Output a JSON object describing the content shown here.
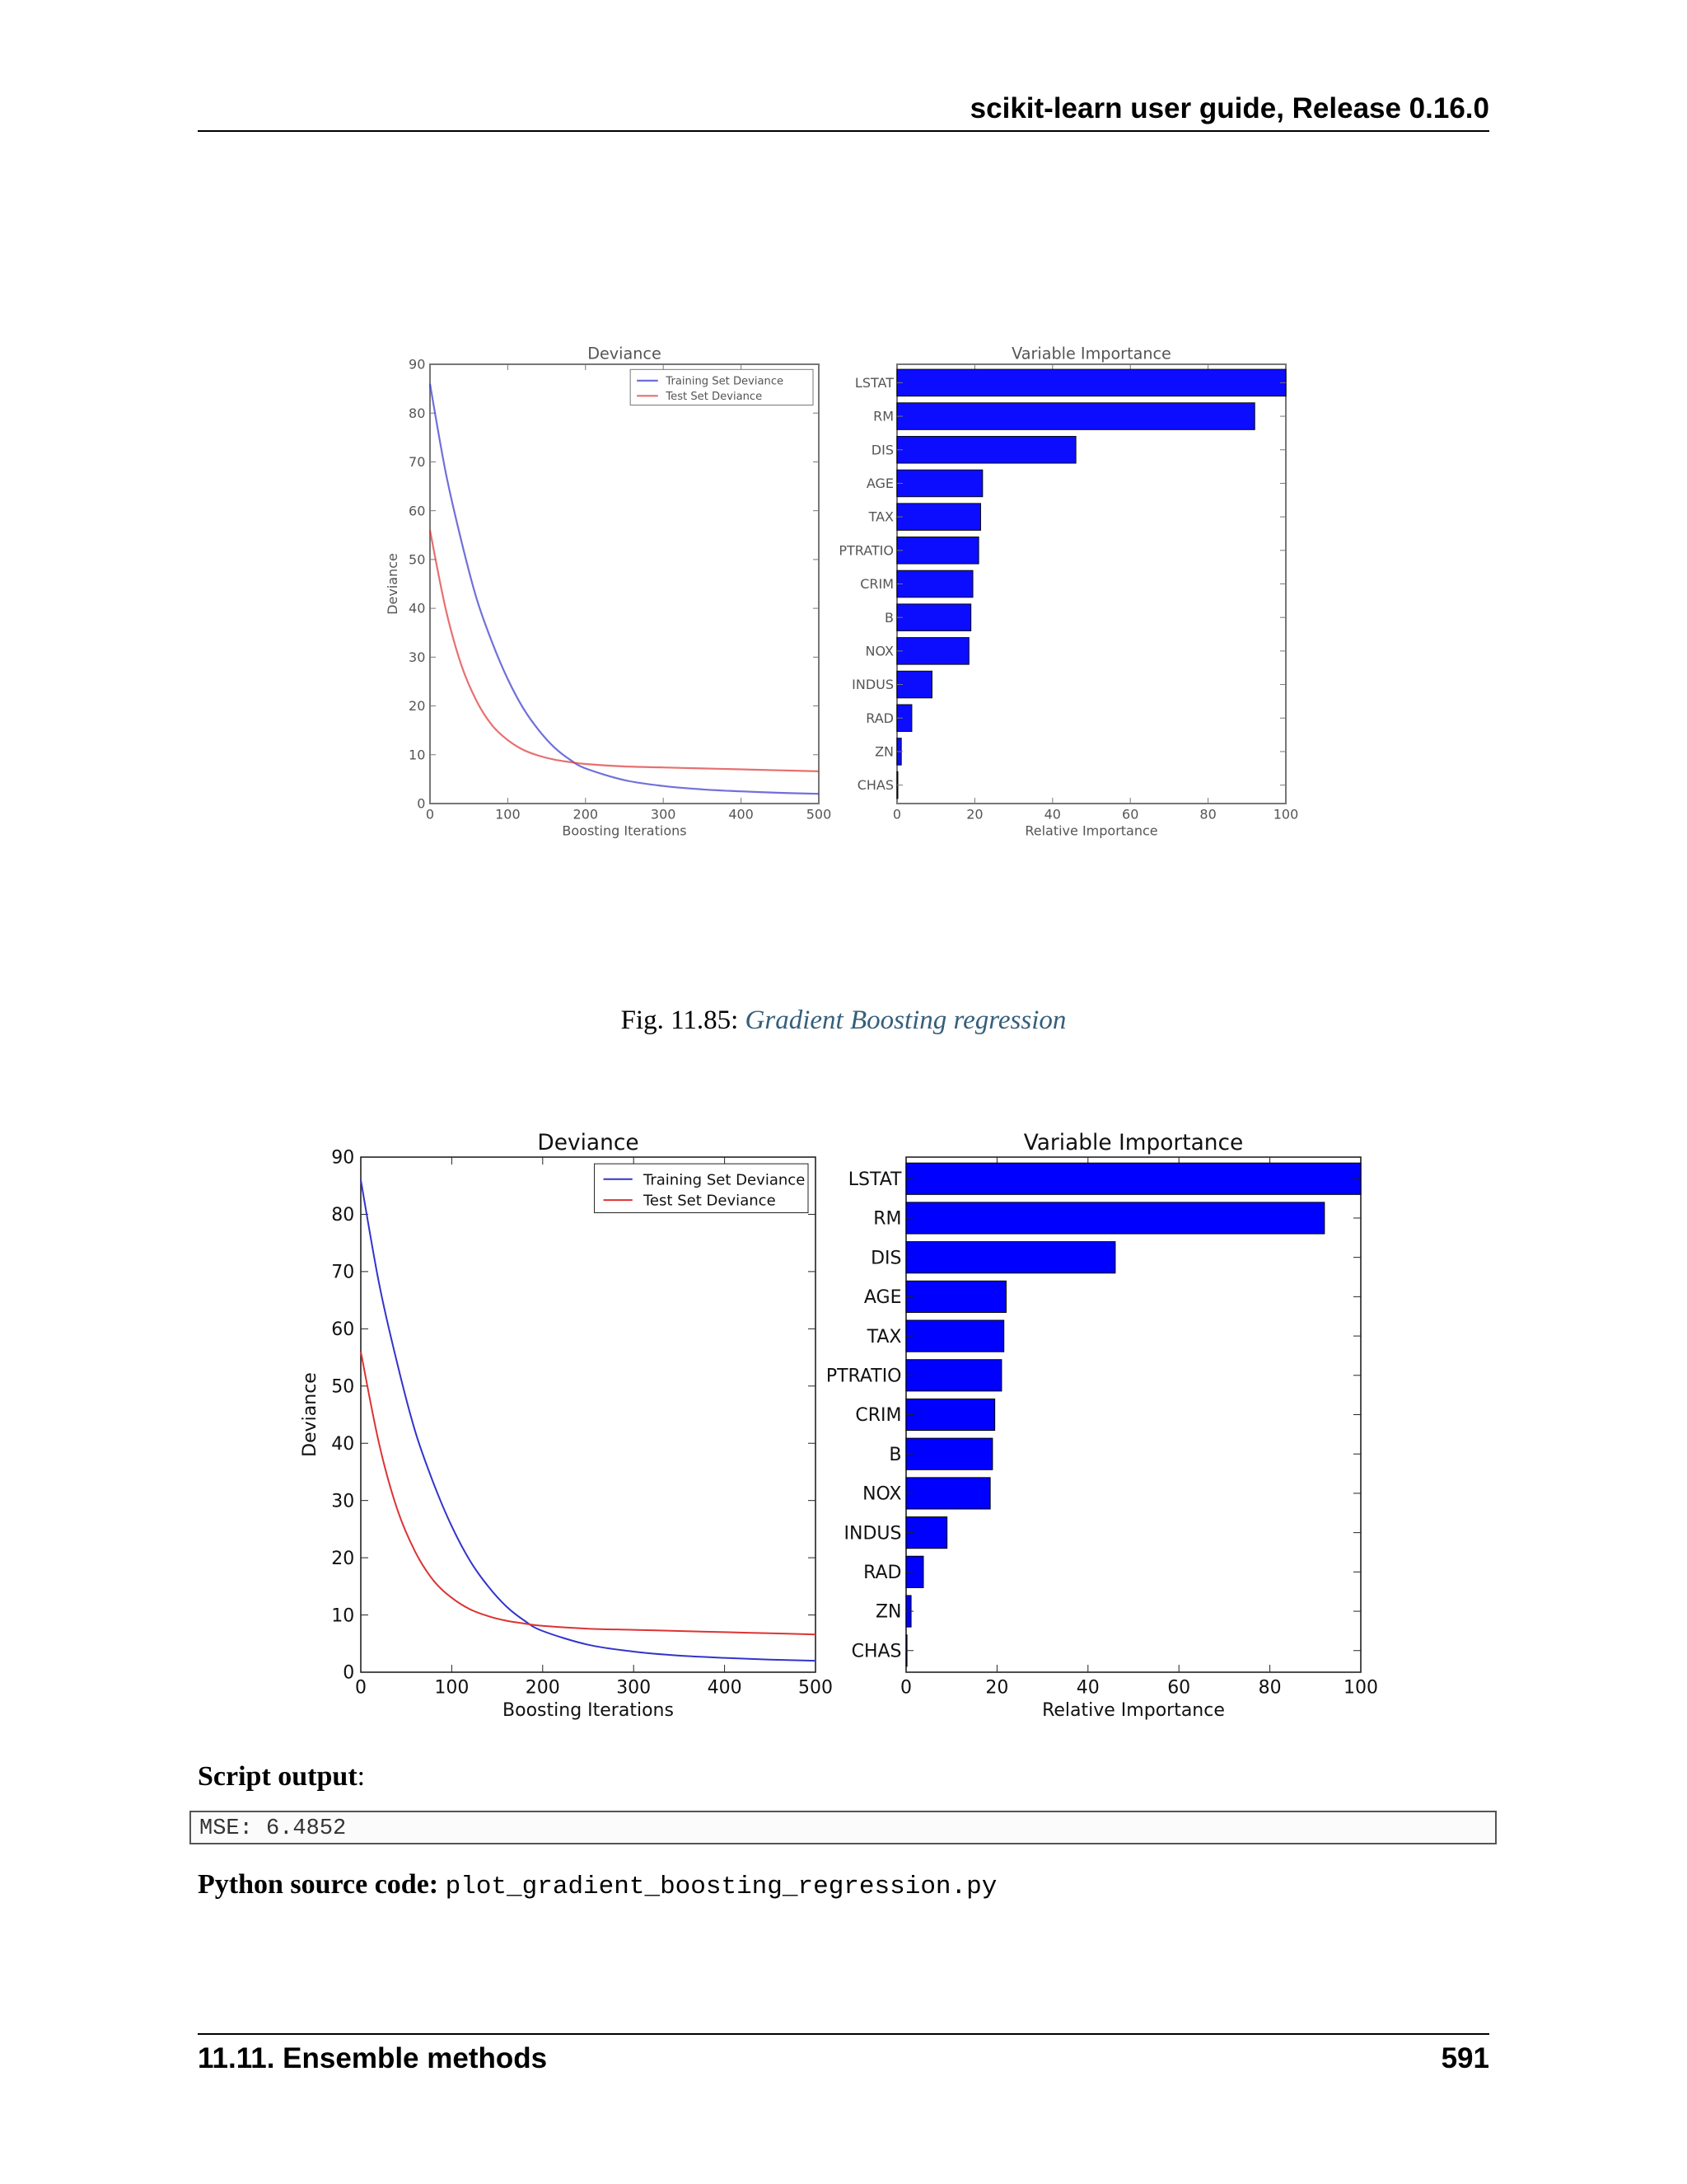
{
  "header": {
    "title": "scikit-learn user guide, Release 0.16.0"
  },
  "figure_caption": {
    "label": "Fig.  11.85: ",
    "link_text": "Gradient Boosting regression"
  },
  "chart_data": [
    {
      "type": "line",
      "title": "Deviance",
      "xlabel": "Boosting Iterations",
      "ylabel": "Deviance",
      "xlim": [
        0,
        500
      ],
      "ylim": [
        0,
        90
      ],
      "xticks": [
        "0",
        "100",
        "200",
        "300",
        "400",
        "500"
      ],
      "yticks": [
        "0",
        "10",
        "20",
        "30",
        "40",
        "50",
        "60",
        "70",
        "80",
        "90"
      ],
      "legend_position": "top-right",
      "grid": false,
      "series": [
        {
          "name": "Training Set Deviance",
          "color": "#3333cc",
          "x": [
            0,
            20,
            40,
            60,
            80,
            100,
            120,
            140,
            160,
            180,
            200,
            250,
            300,
            350,
            400,
            450,
            500
          ],
          "values": [
            86,
            68,
            54,
            42,
            33,
            25.5,
            19.5,
            15,
            11.5,
            9,
            7.2,
            4.8,
            3.6,
            2.9,
            2.5,
            2.2,
            2.0
          ]
        },
        {
          "name": "Test Set Deviance",
          "color": "#dd3333",
          "x": [
            0,
            20,
            40,
            60,
            80,
            100,
            120,
            140,
            160,
            180,
            200,
            250,
            300,
            350,
            400,
            450,
            500
          ],
          "values": [
            56,
            40,
            28.5,
            21,
            16,
            13,
            11,
            9.8,
            9,
            8.5,
            8.1,
            7.6,
            7.4,
            7.2,
            7.0,
            6.8,
            6.6
          ]
        }
      ]
    },
    {
      "type": "bar",
      "orientation": "horizontal",
      "title": "Variable Importance",
      "xlabel": "Relative Importance",
      "ylabel": "",
      "xlim": [
        0,
        100
      ],
      "xticks": [
        "0",
        "20",
        "40",
        "60",
        "80",
        "100"
      ],
      "bar_color": "#0000ff",
      "categories": [
        "LSTAT",
        "RM",
        "DIS",
        "AGE",
        "TAX",
        "PTRATIO",
        "CRIM",
        "B",
        "NOX",
        "INDUS",
        "RAD",
        "ZN",
        "CHAS"
      ],
      "values": [
        100,
        92,
        46,
        22,
        21.5,
        21,
        19.5,
        19,
        18.5,
        9,
        3.8,
        1.1,
        0.2
      ]
    }
  ],
  "script_output": {
    "label": "Script output",
    "colon": ":",
    "value": "MSE: 6.4852"
  },
  "source": {
    "label": "Python source code:",
    "file": "plot_gradient_boosting_regression.py"
  },
  "footer": {
    "section": "11.11.  Ensemble methods",
    "page": "591"
  }
}
